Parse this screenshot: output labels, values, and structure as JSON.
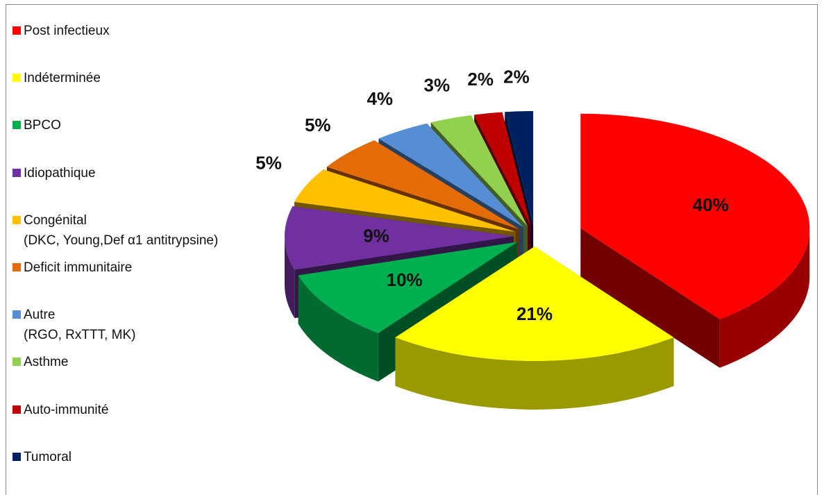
{
  "chart_data": {
    "type": "pie",
    "categories": [
      "Post infectieux",
      "Indéterminée",
      "BPCO",
      "Idiopathique",
      "Congénital\n(DKC, Young,Def α1 antitrypsine)",
      "Deficit immunitaire",
      "Autre\n(RGO, RxTTT, MK)",
      "Asthme",
      "Auto-immunité",
      "Tumoral"
    ],
    "values": [
      40,
      21,
      10,
      9,
      5,
      5,
      4,
      3,
      2,
      2
    ],
    "value_labels": [
      "40%",
      "21%",
      "10%",
      "9%",
      "5%",
      "5%",
      "4%",
      "3%",
      "2%",
      "2%"
    ],
    "colors": [
      "#ff0000",
      "#ffff00",
      "#00b050",
      "#7030a0",
      "#ffc000",
      "#e36c09",
      "#558ed5",
      "#92d050",
      "#c00000",
      "#002060"
    ],
    "legend": "left"
  }
}
